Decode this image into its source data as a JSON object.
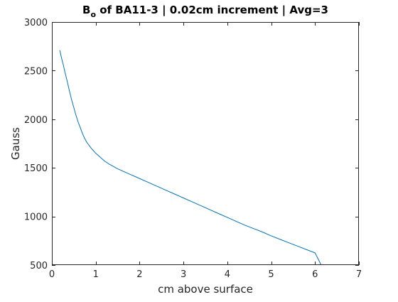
{
  "chart_data": {
    "type": "line",
    "title": {
      "main": "B",
      "subscript": "o",
      "rest": " of BA11-3 | 0.02cm increment | Avg=3"
    },
    "xlabel": "cm above surface",
    "ylabel": "Gauss",
    "xlim": [
      0,
      7
    ],
    "ylim": [
      500,
      3000
    ],
    "xticks": [
      0,
      1,
      2,
      3,
      4,
      5,
      6,
      7
    ],
    "yticks": [
      500,
      1000,
      1500,
      2000,
      2500,
      3000
    ],
    "grid": false,
    "series": [
      {
        "color": "#0072BD",
        "x": [
          0.18,
          0.22,
          0.26,
          0.3,
          0.35,
          0.4,
          0.45,
          0.5,
          0.55,
          0.6,
          0.65,
          0.7,
          0.75,
          0.8,
          0.9,
          1.0,
          1.1,
          1.2,
          1.3,
          1.4,
          1.5,
          1.6,
          1.7,
          1.8,
          1.9,
          2.0,
          2.2,
          2.4,
          2.6,
          2.8,
          3.0,
          3.2,
          3.4,
          3.6,
          3.8,
          4.0,
          4.2,
          4.4,
          4.6,
          4.8,
          5.0,
          5.2,
          5.4,
          5.6,
          5.8,
          6.0,
          6.14
        ],
        "y": [
          2710,
          2630,
          2560,
          2480,
          2390,
          2290,
          2200,
          2120,
          2040,
          1970,
          1910,
          1850,
          1800,
          1760,
          1700,
          1650,
          1610,
          1570,
          1540,
          1515,
          1490,
          1470,
          1450,
          1430,
          1410,
          1390,
          1350,
          1310,
          1270,
          1230,
          1190,
          1150,
          1110,
          1070,
          1030,
          990,
          950,
          910,
          875,
          840,
          800,
          765,
          730,
          695,
          660,
          625,
          500
        ]
      }
    ]
  }
}
